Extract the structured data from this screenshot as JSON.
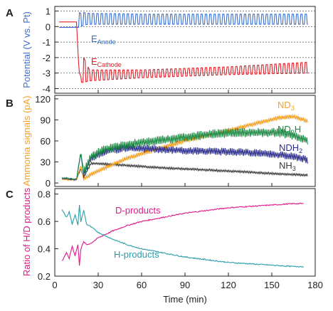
{
  "figure": {
    "panels": [
      "A",
      "B",
      "C"
    ],
    "xlabel": "Time (min)",
    "xticks": [
      "0",
      "30",
      "60",
      "90",
      "120",
      "150",
      "180"
    ],
    "xlim": [
      0,
      180
    ]
  },
  "colors": {
    "anode": "#3a6fcf",
    "cathode": "#e0202a",
    "nd3": "#f5a023",
    "nd2h": "#1f8a45",
    "ndh2": "#2d2f8f",
    "nh3": "#3a3a3a",
    "d_products": "#e0198a",
    "h_products": "#2a9da8",
    "axis_a": "#3a6fcf",
    "axis_b": "#f5a023",
    "axis_c": "#e0198a"
  },
  "chart_data": [
    {
      "panel": "A",
      "type": "line",
      "ylabel": "Potential (V vs. Pt)",
      "yticks": [
        "1",
        "0",
        "-1",
        "-2",
        "-3",
        "-4"
      ],
      "ylim": [
        -4.3,
        1.3
      ],
      "grid": "dashed horizontal",
      "series": [
        {
          "name": "E",
          "subscript": "Anode",
          "oscillating": true,
          "x": [
            0,
            8,
            15,
            17,
            18,
            20,
            24,
            60,
            120,
            175
          ],
          "y_low": [
            -0.05,
            -0.05,
            -0.05,
            -0.05,
            0.0,
            0.1,
            0.15,
            0.15,
            0.15,
            0.15
          ],
          "y_high": [
            -0.05,
            -0.05,
            -0.05,
            0.9,
            0.85,
            0.9,
            0.85,
            0.8,
            0.8,
            0.8
          ]
        },
        {
          "name": "E",
          "subscript": "Cathode",
          "oscillating": true,
          "x": [
            0,
            8,
            15,
            17,
            18,
            20,
            24,
            60,
            120,
            175
          ],
          "y_low": [
            0.3,
            0.3,
            0.3,
            -3.3,
            -3.6,
            -3.6,
            -3.5,
            -3.3,
            -3.1,
            -3.0
          ],
          "y_high": [
            0.3,
            0.3,
            0.3,
            -3.0,
            -3.2,
            -2.0,
            -2.8,
            -2.8,
            -2.6,
            -2.3
          ]
        }
      ]
    },
    {
      "panel": "B",
      "type": "line",
      "ylabel": "Ammonia signals (pA)",
      "yticks": [
        "0",
        "30",
        "60",
        "90",
        "120"
      ],
      "ylim": [
        -5,
        125
      ],
      "series": [
        {
          "name": "ND",
          "subscript": "3",
          "noise": 3,
          "x": [
            5,
            15,
            18,
            20,
            25,
            35,
            50,
            70,
            90,
            110,
            130,
            145,
            155,
            165,
            175
          ],
          "y": [
            5,
            4,
            25,
            6,
            12,
            22,
            35,
            48,
            60,
            70,
            80,
            88,
            93,
            95,
            88
          ]
        },
        {
          "name": "ND",
          "subscript": "2",
          "suffix": "H",
          "noise": 6,
          "x": [
            5,
            15,
            18,
            20,
            25,
            35,
            50,
            70,
            90,
            110,
            130,
            145,
            155,
            165,
            175
          ],
          "y": [
            7,
            5,
            45,
            15,
            38,
            48,
            55,
            60,
            65,
            70,
            72,
            72,
            72,
            68,
            60
          ]
        },
        {
          "name": "ND",
          "subscript": "",
          "suffix": "H",
          "suffix_subscript": "2",
          "noise": 5,
          "x": [
            5,
            15,
            18,
            20,
            25,
            35,
            50,
            70,
            90,
            110,
            130,
            145,
            155,
            165,
            175
          ],
          "y": [
            8,
            4,
            42,
            12,
            35,
            45,
            50,
            48,
            46,
            45,
            44,
            42,
            40,
            38,
            33
          ]
        },
        {
          "name": "NH",
          "subscript": "3",
          "noise": 1.5,
          "x": [
            5,
            15,
            18,
            20,
            25,
            35,
            50,
            70,
            90,
            110,
            130,
            145,
            155,
            165,
            175
          ],
          "y": [
            6,
            5,
            20,
            8,
            28,
            27,
            25,
            22,
            20,
            18,
            16,
            14,
            13,
            12,
            11
          ]
        }
      ]
    },
    {
      "panel": "C",
      "type": "line",
      "ylabel": "Ratio of H/D products",
      "yticks": [
        "0.8",
        "0.6",
        "0.4",
        "0.2"
      ],
      "ylim": [
        0.2,
        0.84
      ],
      "series": [
        {
          "name": "D-products",
          "noise": 0.004,
          "x": [
            5,
            8,
            10,
            12,
            14,
            16,
            17,
            18,
            20,
            22,
            25,
            30,
            40,
            50,
            60,
            75,
            90,
            105,
            120,
            135,
            150,
            165,
            172
          ],
          "y": [
            0.31,
            0.37,
            0.33,
            0.42,
            0.35,
            0.43,
            0.28,
            0.4,
            0.45,
            0.43,
            0.44,
            0.48,
            0.53,
            0.57,
            0.6,
            0.63,
            0.66,
            0.68,
            0.7,
            0.71,
            0.72,
            0.73,
            0.73
          ]
        },
        {
          "name": "H-products",
          "noise": 0.004,
          "x": [
            5,
            8,
            10,
            12,
            14,
            16,
            17,
            18,
            20,
            22,
            25,
            30,
            40,
            50,
            60,
            75,
            90,
            105,
            120,
            135,
            150,
            165,
            172
          ],
          "y": [
            0.69,
            0.63,
            0.67,
            0.58,
            0.65,
            0.57,
            0.72,
            0.6,
            0.68,
            0.58,
            0.56,
            0.52,
            0.47,
            0.43,
            0.4,
            0.37,
            0.34,
            0.32,
            0.3,
            0.29,
            0.28,
            0.27,
            0.27
          ]
        }
      ]
    }
  ]
}
